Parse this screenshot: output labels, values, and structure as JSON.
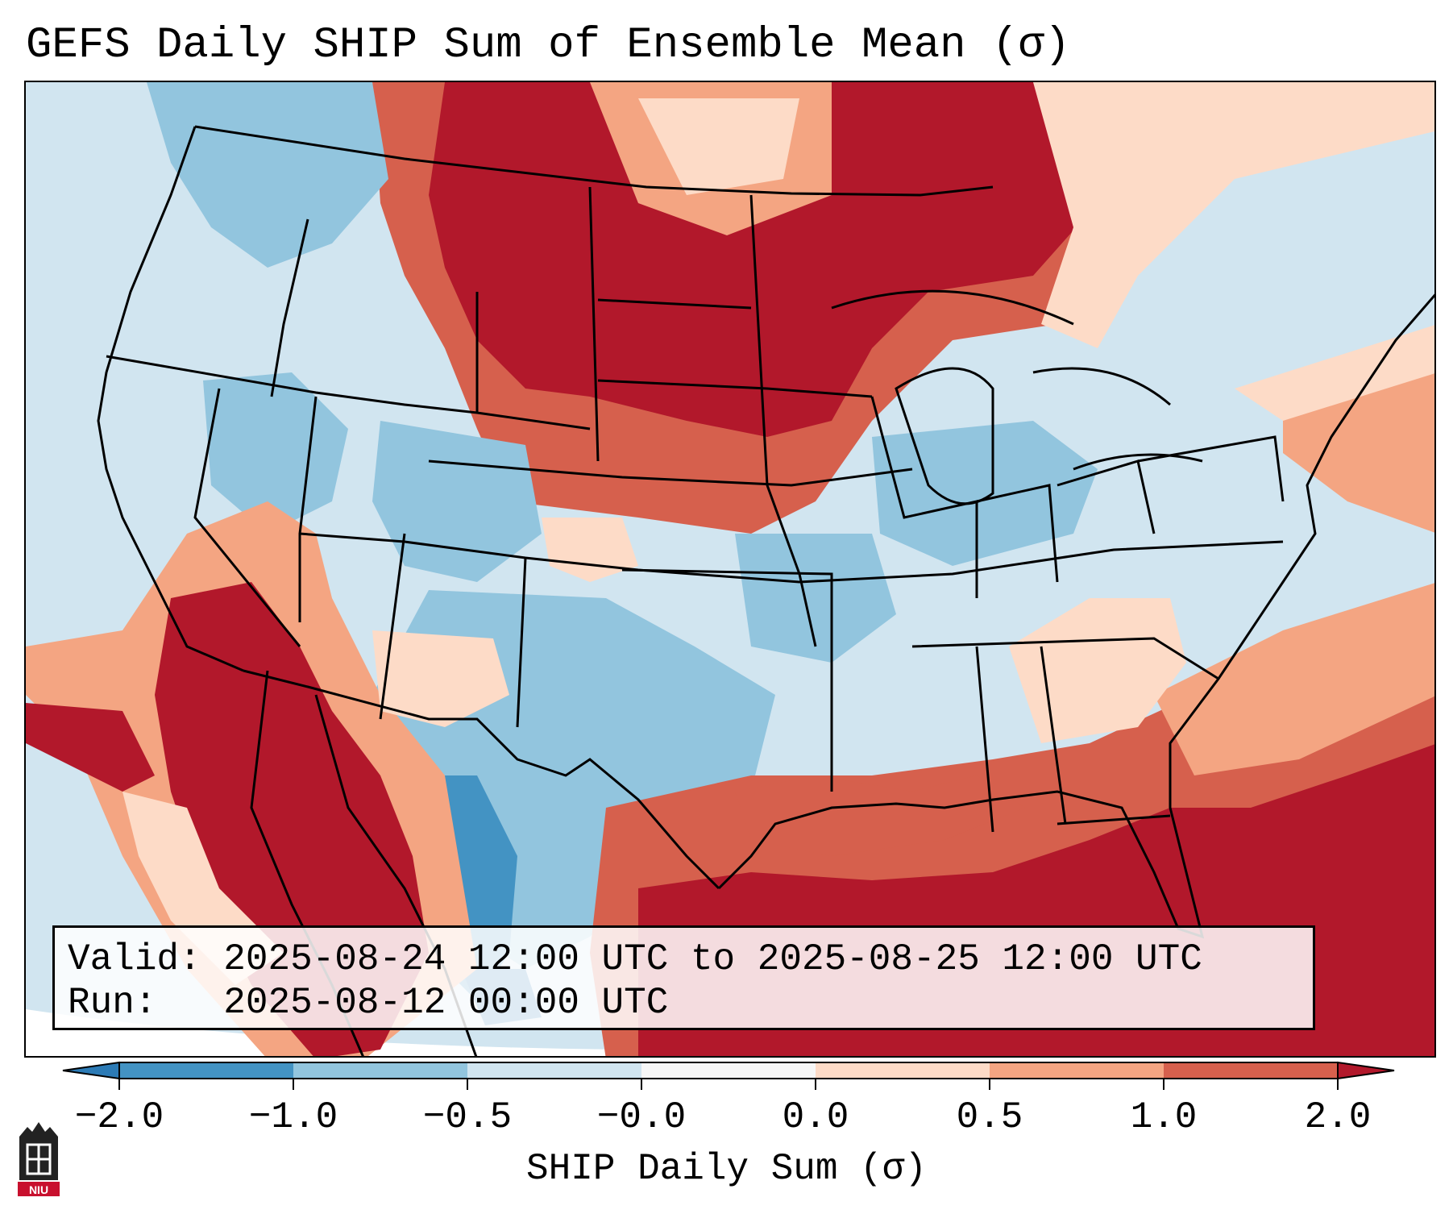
{
  "title": "GEFS Daily SHIP Sum of Ensemble Mean (σ)",
  "info": {
    "valid_label": "Valid:",
    "valid_value": "2025-08-24 12:00 UTC to 2025-08-25 12:00 UTC",
    "run_label": "Run:",
    "run_value": "2025-08-12 00:00 UTC"
  },
  "colorbar": {
    "label": "SHIP Daily Sum (σ)",
    "ticks": [
      "−2.0",
      "−1.0",
      "−0.5",
      "−0.0",
      "0.0",
      "0.5",
      "1.0",
      "2.0"
    ],
    "colors": [
      "#2c7bb6",
      "#4393c3",
      "#92c5de",
      "#d1e5f0",
      "#f7f7f7",
      "#fddbc7",
      "#f4a582",
      "#d6604d",
      "#b2182b"
    ]
  },
  "palette": {
    "deep_blue": "#4393c3",
    "blue": "#92c5de",
    "light_blue": "#d1e5f0",
    "white": "#f7f7f7",
    "light_red": "#fddbc7",
    "salmon": "#f4a582",
    "red": "#d6604d",
    "dark_red": "#b2182b"
  },
  "logo": {
    "text": "NIU",
    "name": "niu-logo"
  }
}
